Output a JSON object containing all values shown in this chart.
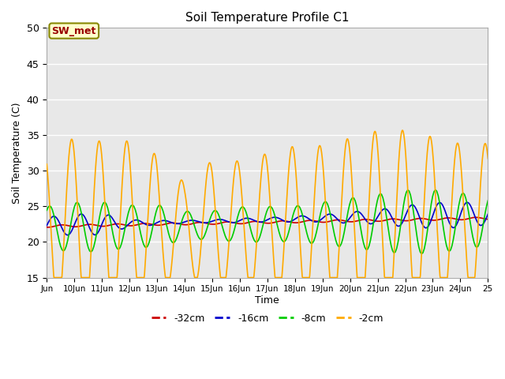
{
  "title": "Soil Temperature Profile C1",
  "ylabel": "Soil Temperature (C)",
  "xlabel": "Time",
  "ylim": [
    15,
    50
  ],
  "xlim": [
    0,
    16
  ],
  "xtick_labels": [
    "Jun",
    "10Jun",
    "11Jun",
    "12Jun",
    "13Jun",
    "14Jun",
    "15Jun",
    "16Jun",
    "17Jun",
    "18Jun",
    "19Jun",
    "20Jun",
    "21Jun",
    "22Jun",
    "23Jun",
    "24Jun",
    "25"
  ],
  "xtick_positions": [
    0,
    1,
    2,
    3,
    4,
    5,
    6,
    7,
    8,
    9,
    10,
    11,
    12,
    13,
    14,
    15,
    16
  ],
  "ytick_positions": [
    15,
    20,
    25,
    30,
    35,
    40,
    45,
    50
  ],
  "ytick_labels": [
    "15",
    "20",
    "25",
    "30",
    "35",
    "40",
    "45",
    "50"
  ],
  "background_color": "#e8e8e8",
  "fig_color": "#ffffff",
  "grid_color": "#ffffff",
  "annotation_text": "SW_met",
  "legend_entries": [
    "-32cm",
    "-16cm",
    "-8cm",
    "-2cm"
  ],
  "legend_colors": [
    "#cc0000",
    "#0000cc",
    "#00cc00",
    "#ffaa00"
  ],
  "series_colors": [
    "#cc0000",
    "#0000cc",
    "#00cc00",
    "#ffaa00"
  ],
  "series_names": [
    "-32cm",
    "-16cm",
    "-8cm",
    "-2cm"
  ]
}
